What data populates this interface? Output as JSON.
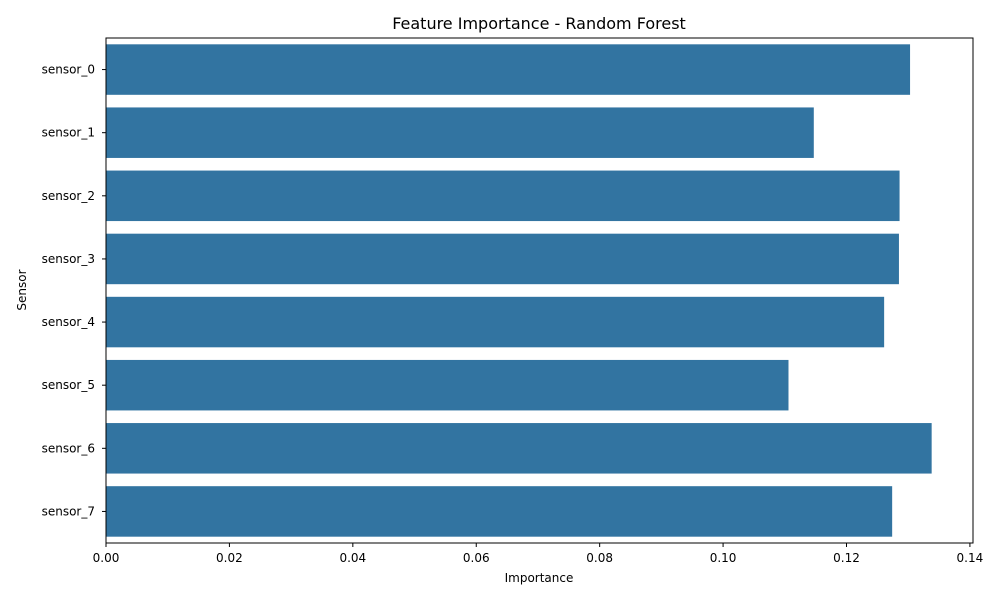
{
  "chart_data": {
    "type": "bar",
    "orientation": "horizontal",
    "title": "Feature Importance - Random Forest",
    "xlabel": "Importance",
    "ylabel": "Sensor",
    "categories": [
      "sensor_0",
      "sensor_1",
      "sensor_2",
      "sensor_3",
      "sensor_4",
      "sensor_5",
      "sensor_6",
      "sensor_7"
    ],
    "values": [
      0.1303,
      0.1147,
      0.1286,
      0.1285,
      0.1261,
      0.1106,
      0.1338,
      0.1274
    ],
    "xlim": [
      0,
      0.1405
    ],
    "xticks": [
      0.0,
      0.02,
      0.04,
      0.06,
      0.08,
      0.1,
      0.12,
      0.14
    ],
    "xtick_labels": [
      "0.00",
      "0.02",
      "0.04",
      "0.06",
      "0.08",
      "0.10",
      "0.12",
      "0.14"
    ],
    "bar_color": "#3274a1",
    "grid": false,
    "legend": "none"
  }
}
